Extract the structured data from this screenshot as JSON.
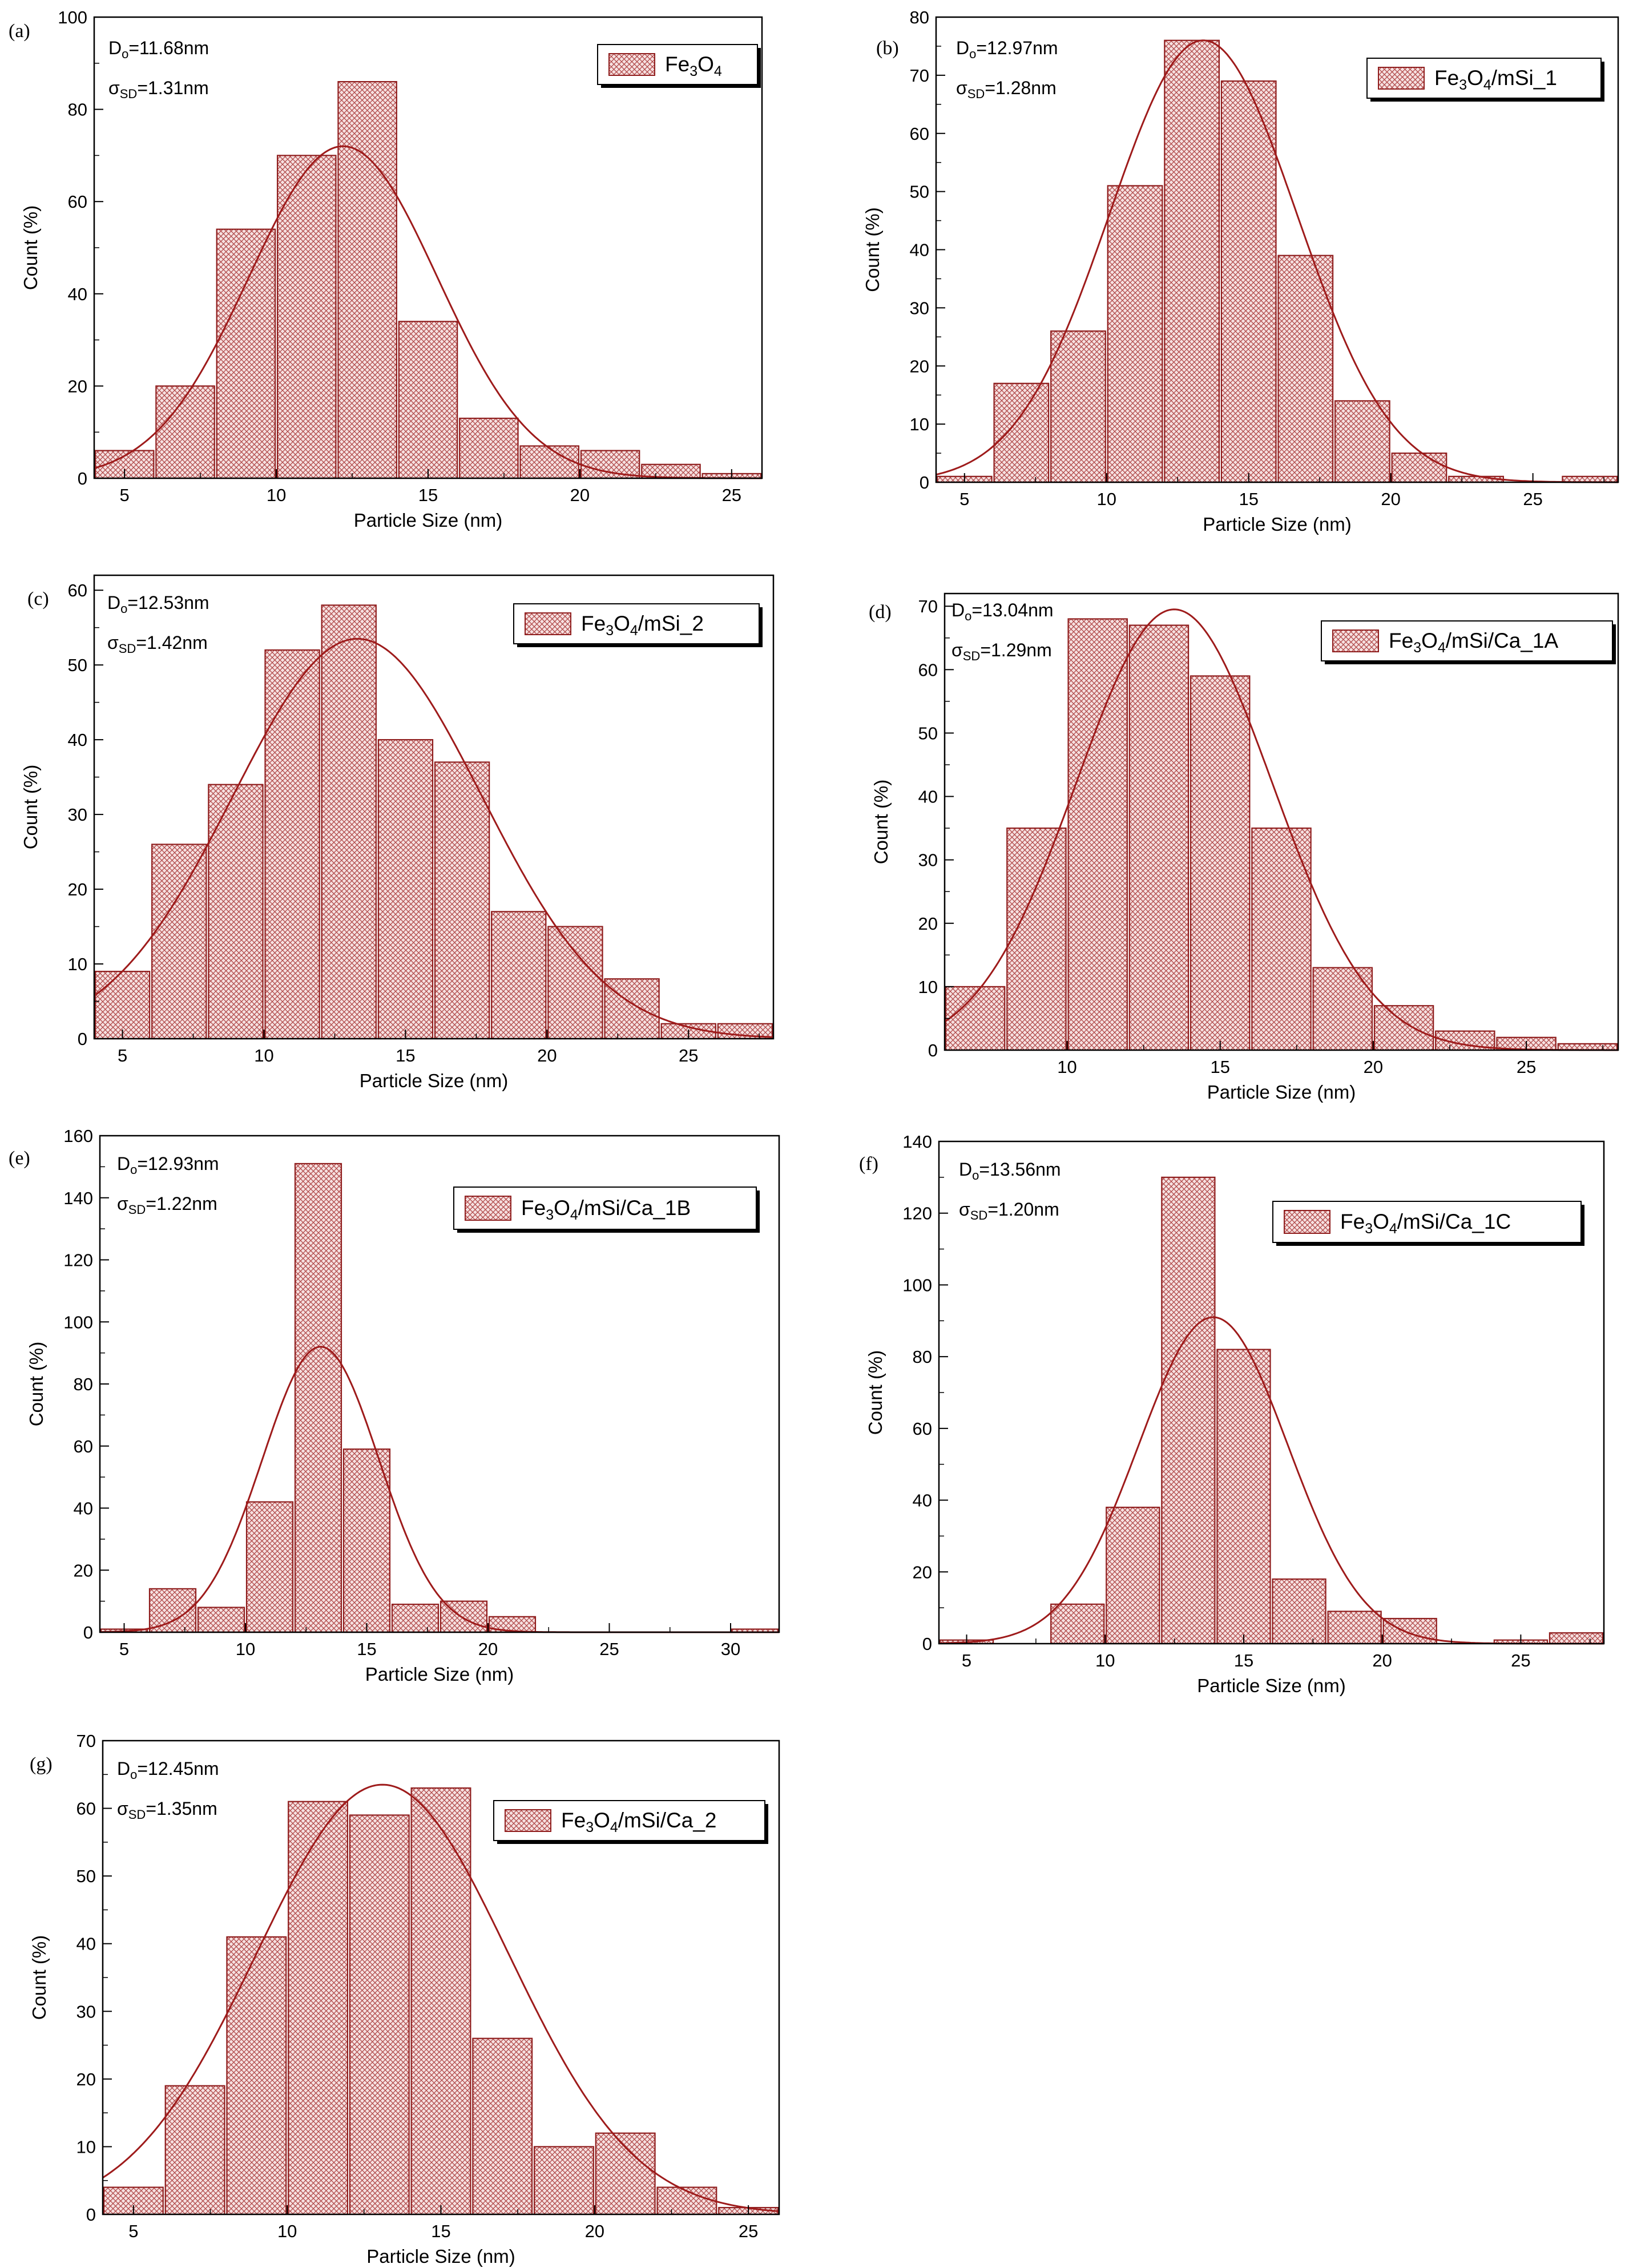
{
  "figure": {
    "colors": {
      "bar_outline": "#8f1d1d",
      "bar_hatch": "#b04848",
      "bar_fill": "#f6e1e1",
      "curve": "#9e1b1b",
      "axis": "#000000"
    }
  },
  "chart_data": [
    {
      "panel": "(a)",
      "type": "bar",
      "xlabel": "Particle Size (nm)",
      "ylabel": "Count (%)",
      "xlim": [
        4,
        26
      ],
      "ylim": [
        0,
        100
      ],
      "xticks": [
        "5",
        "10",
        "15",
        "20",
        "25"
      ],
      "xtick_values": [
        5,
        10,
        15,
        20,
        25
      ],
      "yticks": [
        "0",
        "20",
        "40",
        "60",
        "80",
        "100"
      ],
      "ytick_values": [
        0,
        20,
        40,
        60,
        80,
        100
      ],
      "bins": [
        5,
        7,
        9,
        11,
        13,
        15,
        17,
        19,
        21,
        23,
        25
      ],
      "values": [
        6,
        20,
        54,
        70,
        86,
        34,
        13,
        7,
        6,
        3,
        1
      ],
      "bin_width": 2,
      "fit": {
        "mean": 12.2,
        "sd": 3.1,
        "peak": 72
      },
      "annotations": {
        "d_prefix": "D",
        "d_sub": "o",
        "d_value": "=11.68nm",
        "s_prefix": "σ",
        "s_sub": "SD",
        "s_value": "=1.31nm"
      },
      "legend": {
        "pre": "Fe",
        "sub1": "3",
        "mid": "O",
        "sub2": "4",
        "post": ""
      }
    },
    {
      "panel": "(b)",
      "type": "bar",
      "xlabel": "Particle Size (nm)",
      "ylabel": "Count (%)",
      "xlim": [
        4,
        28
      ],
      "ylim": [
        0,
        80
      ],
      "xticks": [
        "5",
        "10",
        "15",
        "20",
        "25"
      ],
      "xtick_values": [
        5,
        10,
        15,
        20,
        25
      ],
      "yticks": [
        "0",
        "10",
        "20",
        "30",
        "40",
        "50",
        "60",
        "70",
        "80"
      ],
      "ytick_values": [
        0,
        10,
        20,
        30,
        40,
        50,
        60,
        70,
        80
      ],
      "bins": [
        5,
        7,
        9,
        11,
        13,
        15,
        17,
        19,
        21,
        23,
        25,
        27
      ],
      "values": [
        1,
        17,
        26,
        51,
        76,
        69,
        39,
        14,
        5,
        1,
        0,
        1
      ],
      "bin_width": 2,
      "fit": {
        "mean": 13.4,
        "sd": 3.3,
        "peak": 76
      },
      "annotations": {
        "d_prefix": "D",
        "d_sub": "o",
        "d_value": "=12.97nm",
        "s_prefix": "σ",
        "s_sub": "SD",
        "s_value": "=1.28nm"
      },
      "legend": {
        "pre": "Fe",
        "sub1": "3",
        "mid": "O",
        "sub2": "4",
        "post": "/mSi_1"
      }
    },
    {
      "panel": "(c)",
      "type": "bar",
      "xlabel": "Particle Size (nm)",
      "ylabel": "Count (%)",
      "xlim": [
        4,
        28
      ],
      "ylim": [
        0,
        62
      ],
      "xticks": [
        "5",
        "10",
        "15",
        "20",
        "25"
      ],
      "xtick_values": [
        5,
        10,
        15,
        20,
        25
      ],
      "yticks": [
        "0",
        "10",
        "20",
        "30",
        "40",
        "50",
        "60"
      ],
      "ytick_values": [
        0,
        10,
        20,
        30,
        40,
        50,
        60
      ],
      "bins": [
        5,
        7,
        9,
        11,
        13,
        15,
        17,
        19,
        21,
        23,
        25,
        27
      ],
      "values": [
        9,
        26,
        34,
        52,
        58,
        40,
        37,
        17,
        15,
        8,
        2,
        2
      ],
      "bin_width": 2,
      "fit": {
        "mean": 13.3,
        "sd": 4.4,
        "peak": 53.5
      },
      "annotations": {
        "d_prefix": "D",
        "d_sub": "o",
        "d_value": "=12.53nm",
        "s_prefix": "σ",
        "s_sub": "SD",
        "s_value": "=1.42nm"
      },
      "legend": {
        "pre": "Fe",
        "sub1": "3",
        "mid": "O",
        "sub2": "4",
        "post": "/mSi_2"
      }
    },
    {
      "panel": "(d)",
      "type": "bar",
      "xlabel": "Particle Size (nm)",
      "ylabel": "Count (%)",
      "xlim": [
        6,
        28
      ],
      "ylim": [
        0,
        72
      ],
      "xticks": [
        "10",
        "15",
        "20",
        "25"
      ],
      "xtick_values": [
        10,
        15,
        20,
        25
      ],
      "yticks": [
        "0",
        "10",
        "20",
        "30",
        "40",
        "50",
        "60",
        "70"
      ],
      "ytick_values": [
        0,
        10,
        20,
        30,
        40,
        50,
        60,
        70
      ],
      "bins": [
        7,
        9,
        11,
        13,
        15,
        17,
        19,
        21,
        23,
        25,
        27
      ],
      "values": [
        10,
        35,
        68,
        67,
        59,
        35,
        13,
        7,
        3,
        2,
        1
      ],
      "bin_width": 2,
      "fit": {
        "mean": 13.5,
        "sd": 3.2,
        "peak": 69.5
      },
      "annotations": {
        "d_prefix": "D",
        "d_sub": "o",
        "d_value": "=13.04nm",
        "s_prefix": "σ",
        "s_sub": "SD",
        "s_value": "=1.29nm"
      },
      "legend": {
        "pre": "Fe",
        "sub1": "3",
        "mid": "O",
        "sub2": "4",
        "post": "/mSi/Ca_1A"
      }
    },
    {
      "panel": "(e)",
      "type": "bar",
      "xlabel": "Particle Size (nm)",
      "ylabel": "Count (%)",
      "xlim": [
        4,
        32
      ],
      "ylim": [
        0,
        160
      ],
      "xticks": [
        "5",
        "10",
        "15",
        "20",
        "25",
        "30"
      ],
      "xtick_values": [
        5,
        10,
        15,
        20,
        25,
        30
      ],
      "yticks": [
        "0",
        "20",
        "40",
        "60",
        "80",
        "100",
        "120",
        "140",
        "160"
      ],
      "ytick_values": [
        0,
        20,
        40,
        60,
        80,
        100,
        120,
        140,
        160
      ],
      "bins": [
        5,
        7,
        9,
        11,
        13,
        15,
        17,
        19,
        21,
        23,
        25,
        27,
        29,
        31
      ],
      "values": [
        1,
        14,
        8,
        42,
        151,
        59,
        9,
        10,
        5,
        0,
        0,
        0,
        0,
        1
      ],
      "bin_width": 2,
      "fit": {
        "mean": 13.1,
        "sd": 2.4,
        "peak": 92
      },
      "annotations": {
        "d_prefix": "D",
        "d_sub": "o",
        "d_value": "=12.93nm",
        "s_prefix": "σ",
        "s_sub": "SD",
        "s_value": "=1.22nm"
      },
      "legend": {
        "pre": "Fe",
        "sub1": "3",
        "mid": "O",
        "sub2": "4",
        "post": "/mSi/Ca_1B"
      }
    },
    {
      "panel": "(f)",
      "type": "bar",
      "xlabel": "Particle Size (nm)",
      "ylabel": "Count (%)",
      "xlim": [
        4,
        28
      ],
      "ylim": [
        0,
        140
      ],
      "xticks": [
        "5",
        "10",
        "15",
        "20",
        "25"
      ],
      "xtick_values": [
        5,
        10,
        15,
        20,
        25
      ],
      "yticks": [
        "0",
        "20",
        "40",
        "60",
        "80",
        "100",
        "120",
        "140"
      ],
      "ytick_values": [
        0,
        20,
        40,
        60,
        80,
        100,
        120,
        140
      ],
      "bins": [
        5,
        7,
        9,
        11,
        13,
        15,
        17,
        19,
        21,
        23,
        25,
        27
      ],
      "values": [
        1,
        0,
        11,
        38,
        130,
        82,
        18,
        9,
        7,
        0,
        1,
        3
      ],
      "bin_width": 2,
      "fit": {
        "mean": 13.9,
        "sd": 2.7,
        "peak": 91
      },
      "annotations": {
        "d_prefix": "D",
        "d_sub": "o",
        "d_value": "=13.56nm",
        "s_prefix": "σ",
        "s_sub": "SD",
        "s_value": "=1.20nm"
      },
      "legend": {
        "pre": "Fe",
        "sub1": "3",
        "mid": "O",
        "sub2": "4",
        "post": "/mSi/Ca_1C"
      }
    },
    {
      "panel": "(g)",
      "type": "bar",
      "xlabel": "Particle Size (nm)",
      "ylabel": "Count (%)",
      "xlim": [
        4,
        26
      ],
      "ylim": [
        0,
        70
      ],
      "xticks": [
        "5",
        "10",
        "15",
        "20",
        "25"
      ],
      "xtick_values": [
        5,
        10,
        15,
        20,
        25
      ],
      "yticks": [
        "0",
        "10",
        "20",
        "30",
        "40",
        "50",
        "60",
        "70"
      ],
      "ytick_values": [
        0,
        10,
        20,
        30,
        40,
        50,
        60,
        70
      ],
      "bins": [
        5,
        7,
        9,
        11,
        13,
        15,
        17,
        19,
        21,
        23,
        25
      ],
      "values": [
        4,
        19,
        41,
        61,
        59,
        63,
        26,
        10,
        12,
        4,
        1
      ],
      "bin_width": 2,
      "fit": {
        "mean": 13.1,
        "sd": 4.1,
        "peak": 63.5
      },
      "annotations": {
        "d_prefix": "D",
        "d_sub": "o",
        "d_value": "=12.45nm",
        "s_prefix": "σ",
        "s_sub": "SD",
        "s_value": "=1.35nm"
      },
      "legend": {
        "pre": "Fe",
        "sub1": "3",
        "mid": "O",
        "sub2": "4",
        "post": "/mSi/Ca_2"
      }
    }
  ]
}
